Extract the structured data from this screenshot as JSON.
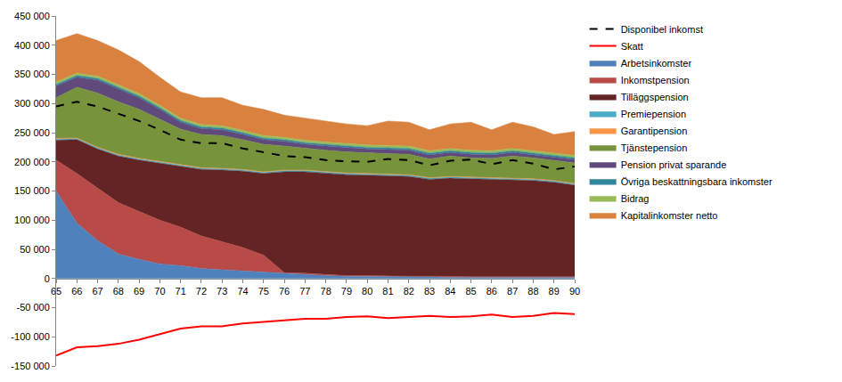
{
  "chart_data": {
    "type": "area",
    "stacked": true,
    "grid": false,
    "legend": "right",
    "x": [
      65,
      66,
      67,
      68,
      69,
      70,
      71,
      72,
      73,
      74,
      75,
      76,
      77,
      78,
      79,
      80,
      81,
      82,
      83,
      84,
      85,
      86,
      87,
      88,
      89,
      90
    ],
    "xlim": [
      65,
      90
    ],
    "xticks": [
      65,
      66,
      67,
      68,
      69,
      70,
      71,
      72,
      73,
      74,
      75,
      76,
      77,
      78,
      79,
      80,
      81,
      82,
      83,
      84,
      85,
      86,
      87,
      88,
      89,
      90
    ],
    "ylim": [
      -150000,
      450000
    ],
    "yticks": [
      {
        "value": -150000,
        "label": "-150 000"
      },
      {
        "value": -100000,
        "label": "-100 000"
      },
      {
        "value": -50000,
        "label": "-50 000"
      },
      0,
      {
        "value": 50000,
        "label": "50 000"
      },
      {
        "value": 100000,
        "label": "100 000"
      },
      {
        "value": 150000,
        "label": "150 000"
      },
      {
        "value": 200000,
        "label": "200 000"
      },
      {
        "value": 250000,
        "label": "250 000"
      },
      {
        "value": 300000,
        "label": "300 000"
      },
      {
        "value": 350000,
        "label": "350 000"
      },
      {
        "value": 400000,
        "label": "400 000"
      },
      {
        "value": 450000,
        "label": "450 000"
      }
    ],
    "series": [
      {
        "name": "Arbetsinkomster",
        "type": "area",
        "color": "#4f81bd",
        "values": [
          150000,
          95000,
          65000,
          42000,
          33000,
          25000,
          22000,
          17000,
          15000,
          13000,
          10000,
          8000,
          7000,
          5000,
          4000,
          4000,
          3000,
          3000,
          3000,
          2000,
          2000,
          2000,
          2000,
          2000,
          2000,
          2000
        ]
      },
      {
        "name": "Inkomstpension",
        "type": "area",
        "color": "#b84a48",
        "values": [
          53000,
          85000,
          90000,
          88000,
          82000,
          75000,
          66000,
          56000,
          48000,
          40000,
          30000,
          2000,
          2000,
          2000,
          1000,
          1000,
          1000,
          1000,
          1000,
          1000,
          1000,
          1000,
          1000,
          1000,
          1000,
          1000
        ]
      },
      {
        "name": "Tilläggspension",
        "type": "area",
        "color": "#632423",
        "values": [
          34000,
          58000,
          67000,
          80000,
          88000,
          98000,
          105000,
          114000,
          123000,
          131000,
          140000,
          173000,
          174000,
          173000,
          173000,
          172000,
          172000,
          171000,
          166000,
          169000,
          168000,
          167000,
          167000,
          165000,
          162000,
          157000
        ]
      },
      {
        "name": "Premiepension",
        "type": "area",
        "color": "#4bacc6",
        "values": [
          2000,
          2000,
          2000,
          2000,
          2000,
          2000,
          2000,
          2000,
          2000,
          2000,
          2000,
          2000,
          2000,
          2000,
          2000,
          2000,
          2000,
          2000,
          2000,
          2000,
          2000,
          2000,
          2000,
          2000,
          2000,
          2000
        ]
      },
      {
        "name": "Garantipension",
        "type": "area",
        "color": "#f79646",
        "values": [
          1000,
          1000,
          1000,
          1000,
          1000,
          1000,
          1000,
          1000,
          1000,
          1000,
          1000,
          1000,
          1000,
          1000,
          1000,
          1000,
          1000,
          1000,
          1000,
          1000,
          1000,
          1000,
          1000,
          1000,
          1000,
          1000
        ]
      },
      {
        "name": "Tjänstepension",
        "type": "area",
        "color": "#77933c",
        "values": [
          70000,
          87000,
          93000,
          90000,
          84000,
          72000,
          60000,
          57000,
          56000,
          51000,
          47000,
          41000,
          37000,
          37000,
          36000,
          35000,
          35000,
          35000,
          32000,
          35000,
          33000,
          33000,
          37000,
          36000,
          34000,
          35000
        ]
      },
      {
        "name": "Pension privat sparande",
        "type": "area",
        "color": "#604a7b",
        "values": [
          20000,
          17000,
          22000,
          22000,
          20000,
          17000,
          12000,
          10000,
          10000,
          9000,
          8000,
          8000,
          7000,
          7000,
          7000,
          7000,
          7000,
          7000,
          7000,
          6000,
          6000,
          6000,
          6000,
          5000,
          5000,
          6000
        ]
      },
      {
        "name": "Övriga beskattningsbara inkomster",
        "type": "area",
        "color": "#31859c",
        "values": [
          3000,
          3000,
          3000,
          3000,
          3000,
          3000,
          3000,
          3000,
          3000,
          3000,
          3000,
          3000,
          3000,
          3000,
          3000,
          3000,
          3000,
          3000,
          3000,
          3000,
          3000,
          3000,
          3000,
          3000,
          3000,
          3000
        ]
      },
      {
        "name": "Bidrag",
        "type": "area",
        "color": "#9bbb59",
        "values": [
          4000,
          4000,
          4000,
          4000,
          4000,
          4000,
          4000,
          4000,
          4000,
          4000,
          4000,
          4000,
          4000,
          4000,
          4000,
          4000,
          4000,
          4000,
          4000,
          4000,
          4000,
          4000,
          4000,
          4000,
          4000,
          4000
        ]
      },
      {
        "name": "Kapitalinkomster netto",
        "type": "area",
        "color": "#d9823f",
        "values": [
          71000,
          68000,
          61000,
          60000,
          55000,
          48000,
          45000,
          46000,
          48000,
          43000,
          45000,
          38000,
          38000,
          36000,
          34000,
          33000,
          42000,
          41000,
          36000,
          42000,
          48000,
          36000,
          45000,
          41000,
          33000,
          41000
        ]
      },
      {
        "name": "Skatt",
        "type": "line",
        "line_style": "solid",
        "color": "#ff0000",
        "values": [
          -132000,
          -118000,
          -116000,
          -112000,
          -105000,
          -96000,
          -86000,
          -82000,
          -82000,
          -77000,
          -74000,
          -71000,
          -69000,
          -69000,
          -66000,
          -65000,
          -68000,
          -66000,
          -64000,
          -66000,
          -65000,
          -62000,
          -66000,
          -64000,
          -59000,
          -61000
        ]
      },
      {
        "name": "Disponibel inkomst",
        "type": "line",
        "line_style": "dashed",
        "color": "#000000",
        "values": [
          295000,
          303000,
          295000,
          283000,
          270000,
          255000,
          238000,
          232000,
          232000,
          223000,
          217000,
          210000,
          208000,
          203000,
          201000,
          200000,
          205000,
          203000,
          194000,
          202000,
          204000,
          196000,
          203000,
          197000,
          187000,
          192000
        ]
      }
    ]
  }
}
